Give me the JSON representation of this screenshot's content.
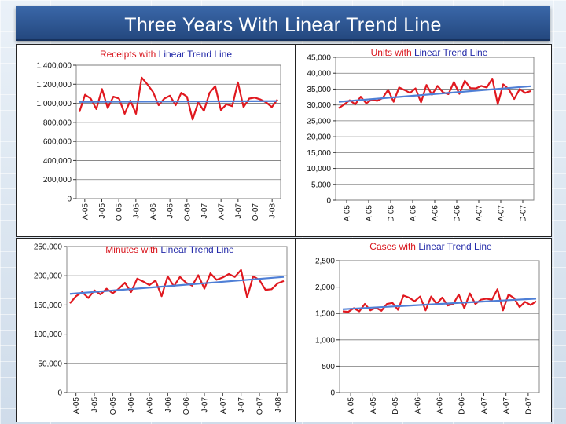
{
  "slide": {
    "title": "Three Years With Linear Trend Line"
  },
  "colors": {
    "data_line": "#e0181f",
    "trend_line": "#4f7fd6",
    "title_measure": "#d8141c",
    "title_trend": "#2229a8",
    "banner": "#2f5a98"
  },
  "chart_data": [
    {
      "id": "receipts",
      "type": "line",
      "title": "Receipts with Linear Trend Line",
      "title_parts": {
        "measure": "Receipts",
        "joiner": " with ",
        "trend_word": "Linear",
        "trend_rest": " Trend Line"
      },
      "ylim": [
        0,
        1400000
      ],
      "y_ticks": [
        0,
        200000,
        400000,
        600000,
        800000,
        1000000,
        1200000,
        1400000
      ],
      "y_tick_labels": [
        "0",
        "200,000",
        "400,000",
        "600,000",
        "800,000",
        "1,000,000",
        "1,200,000",
        "1,400,000"
      ],
      "x_tick_labels": [
        "A-05",
        "J-05",
        "O-05",
        "J-06",
        "A-06",
        "J-06",
        "O-06",
        "J-07",
        "A-07",
        "J-07",
        "O-07",
        "J-08"
      ],
      "series": [
        {
          "name": "Receipts",
          "values": [
            910000,
            1090000,
            1050000,
            940000,
            1150000,
            950000,
            1070000,
            1050000,
            890000,
            1030000,
            890000,
            1270000,
            1200000,
            1120000,
            980000,
            1050000,
            1080000,
            980000,
            1110000,
            1070000,
            830000,
            1010000,
            920000,
            1110000,
            1180000,
            930000,
            990000,
            970000,
            1220000,
            960000,
            1050000,
            1060000,
            1040000,
            1010000,
            960000,
            1040000
          ]
        },
        {
          "name": "Linear Trend",
          "values": [
            1015000,
            1023000
          ]
        }
      ]
    },
    {
      "id": "units",
      "type": "line",
      "title": "Units with Linear Trend Line",
      "title_parts": {
        "measure": "Units",
        "joiner": " with ",
        "trend_word": "Linear",
        "trend_rest": " Trend Line"
      },
      "ylim": [
        0,
        45000
      ],
      "y_ticks": [
        0,
        5000,
        10000,
        15000,
        20000,
        25000,
        30000,
        35000,
        40000,
        45000
      ],
      "y_tick_labels": [
        "0",
        "5,000",
        "10,000",
        "15,000",
        "20,000",
        "25,000",
        "30,000",
        "35,000",
        "40,000",
        "45,000"
      ],
      "x_tick_labels": [
        "A-05",
        "A-05",
        "D-05",
        "A-06",
        "A-06",
        "D-06",
        "A-07",
        "A-07",
        "D-07"
      ],
      "series": [
        {
          "name": "Units",
          "values": [
            29000,
            30200,
            31500,
            30200,
            32600,
            30500,
            31700,
            31300,
            32200,
            34800,
            31000,
            35500,
            34700,
            33800,
            35200,
            30800,
            36300,
            33200,
            36000,
            34000,
            33400,
            37200,
            33500,
            37600,
            35300,
            35200,
            36000,
            35500,
            38300,
            30300,
            36500,
            35000,
            31900,
            35000,
            33800,
            34400
          ]
        },
        {
          "name": "Linear Trend",
          "values": [
            31000,
            35900
          ]
        }
      ]
    },
    {
      "id": "minutes",
      "type": "line",
      "title": "Minutes with Linear Trend Line",
      "title_parts": {
        "measure": "Minutes",
        "joiner": " with ",
        "trend_word": "Linear",
        "trend_rest": " Trend Line"
      },
      "ylim": [
        0,
        250000
      ],
      "y_ticks": [
        0,
        50000,
        100000,
        150000,
        200000,
        250000
      ],
      "y_tick_labels": [
        "0",
        "50,000",
        "100,000",
        "150,000",
        "200,000",
        "250,000"
      ],
      "x_tick_labels": [
        "A-05",
        "J-05",
        "O-05",
        "J-06",
        "A-06",
        "J-06",
        "O-06",
        "J-07",
        "A-07",
        "J-07",
        "O-07",
        "J-08"
      ],
      "series": [
        {
          "name": "Minutes",
          "values": [
            153000,
            165000,
            172000,
            162000,
            175000,
            168000,
            178000,
            170000,
            178000,
            188000,
            172000,
            195000,
            190000,
            184000,
            192000,
            165000,
            199000,
            182000,
            198000,
            188000,
            183000,
            201000,
            178000,
            204000,
            193000,
            197000,
            203000,
            198000,
            210000,
            163000,
            199000,
            193000,
            176000,
            177000,
            187000,
            191000
          ]
        },
        {
          "name": "Linear Trend",
          "values": [
            169000,
            198000
          ]
        }
      ]
    },
    {
      "id": "cases",
      "type": "line",
      "title": "Cases with Linear Trend Line",
      "title_parts": {
        "measure": "Cases",
        "joiner": " with ",
        "trend_word": "Linear",
        "trend_rest": " Trend Line"
      },
      "ylim": [
        0,
        2500
      ],
      "y_ticks": [
        0,
        500,
        1000,
        1500,
        2000,
        2500
      ],
      "y_tick_labels": [
        "0",
        "500",
        "1,000",
        "1,500",
        "2,000",
        "2,500"
      ],
      "x_tick_labels": [
        "A-05",
        "A-05",
        "D-05",
        "A-06",
        "A-06",
        "D-06",
        "A-07",
        "A-07",
        "D-07"
      ],
      "series": [
        {
          "name": "Cases",
          "values": [
            1540,
            1530,
            1600,
            1540,
            1680,
            1560,
            1610,
            1550,
            1680,
            1700,
            1570,
            1840,
            1800,
            1730,
            1820,
            1560,
            1820,
            1680,
            1800,
            1650,
            1680,
            1860,
            1600,
            1880,
            1680,
            1760,
            1780,
            1760,
            1960,
            1560,
            1860,
            1790,
            1620,
            1720,
            1660,
            1730
          ]
        },
        {
          "name": "Linear Trend",
          "values": [
            1580,
            1780
          ]
        }
      ]
    }
  ]
}
